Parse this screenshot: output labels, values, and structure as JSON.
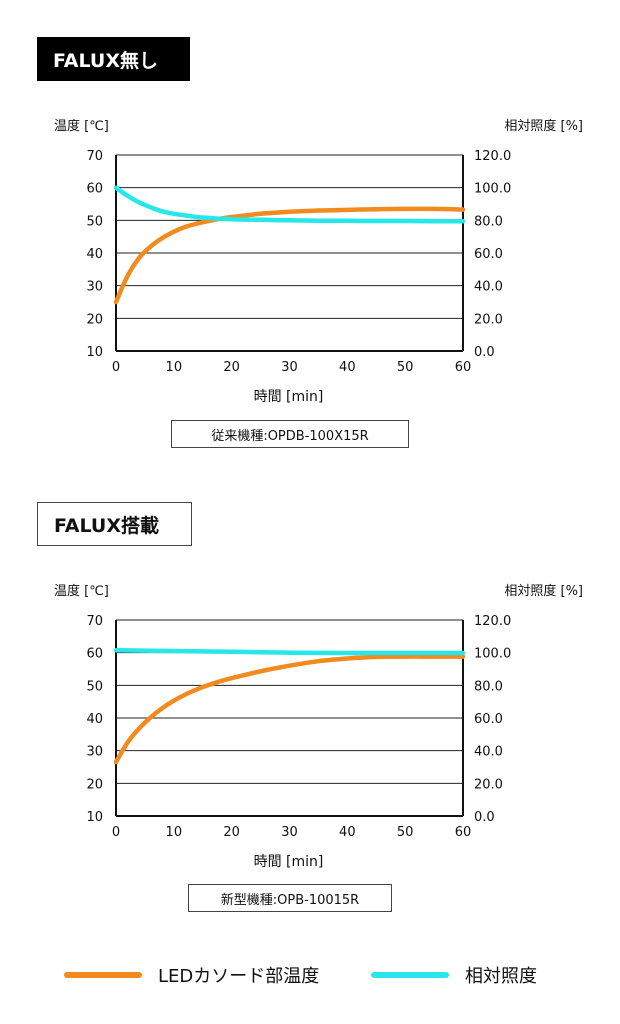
{
  "sections": [
    {
      "heading": "FALUX無し",
      "caption": "従来機種:OPDB-100X15R"
    },
    {
      "heading": "FALUX搭載",
      "caption": "新型機種:OPB-10015R"
    }
  ],
  "legend": {
    "items": [
      {
        "label": "LEDカソード部温度",
        "color": "#f28a1e"
      },
      {
        "label": "相対照度",
        "color": "#26e8ea"
      }
    ]
  },
  "chart_data": [
    {
      "type": "line",
      "title": "FALUX無し",
      "xlabel": "時間 [min]",
      "ylabel": "温度 [℃]",
      "y2label": "相対照度 [%]",
      "xlim": [
        0,
        60
      ],
      "ylim": [
        10,
        70
      ],
      "y2lim": [
        0,
        120
      ],
      "x_ticks": [
        "0",
        "10",
        "20",
        "30",
        "40",
        "50",
        "60"
      ],
      "y_ticks": [
        "10",
        "20",
        "30",
        "40",
        "50",
        "60",
        "70"
      ],
      "y2_ticks": [
        "0.0",
        "20.0",
        "40.0",
        "60.0",
        "80.0",
        "100.0",
        "120.0"
      ],
      "grid": "horizontal",
      "series": [
        {
          "name": "LEDカソード部温度",
          "axis": "left",
          "color": "#f28a1e",
          "x": [
            0,
            2,
            4,
            6,
            8,
            10,
            12,
            14,
            16,
            18,
            20,
            25,
            30,
            35,
            40,
            45,
            50,
            55,
            60
          ],
          "y": [
            25,
            33,
            38.5,
            42,
            44.6,
            46.5,
            48,
            49,
            49.8,
            50.5,
            51,
            52,
            52.6,
            53,
            53.2,
            53.4,
            53.5,
            53.5,
            53.3
          ]
        },
        {
          "name": "相対照度",
          "axis": "right",
          "color": "#26e8ea",
          "x": [
            0,
            2,
            4,
            6,
            8,
            10,
            12,
            14,
            16,
            18,
            20,
            25,
            30,
            35,
            40,
            45,
            50,
            55,
            60
          ],
          "y": [
            100,
            95,
            91,
            88,
            85.5,
            84,
            83,
            82,
            81.5,
            81,
            80.7,
            80.3,
            80,
            79.8,
            79.7,
            79.6,
            79.6,
            79.5,
            79.5
          ]
        }
      ]
    },
    {
      "type": "line",
      "title": "FALUX搭載",
      "xlabel": "時間 [min]",
      "ylabel": "温度 [℃]",
      "y2label": "相対照度 [%]",
      "xlim": [
        0,
        60
      ],
      "ylim": [
        10,
        70
      ],
      "y2lim": [
        0,
        120
      ],
      "x_ticks": [
        "0",
        "10",
        "20",
        "30",
        "40",
        "50",
        "60"
      ],
      "y_ticks": [
        "10",
        "20",
        "30",
        "40",
        "50",
        "60",
        "70"
      ],
      "y2_ticks": [
        "0.0",
        "20.0",
        "40.0",
        "60.0",
        "80.0",
        "100.0",
        "120.0"
      ],
      "grid": "horizontal",
      "series": [
        {
          "name": "LEDカソード部温度",
          "axis": "left",
          "color": "#f28a1e",
          "x": [
            0,
            2,
            4,
            6,
            8,
            10,
            12,
            14,
            16,
            18,
            20,
            25,
            30,
            35,
            40,
            45,
            50,
            55,
            60
          ],
          "y": [
            26.5,
            32.5,
            36.8,
            40.2,
            43,
            45.3,
            47.2,
            48.8,
            50.1,
            51.2,
            52.2,
            54.3,
            56,
            57.4,
            58.2,
            58.7,
            58.8,
            58.8,
            58.8
          ]
        },
        {
          "name": "相対照度",
          "axis": "right",
          "color": "#26e8ea",
          "x": [
            0,
            10,
            20,
            30,
            40,
            50,
            60
          ],
          "y": [
            101.5,
            101,
            100.5,
            100,
            99.8,
            99.8,
            99.8
          ]
        }
      ]
    }
  ]
}
